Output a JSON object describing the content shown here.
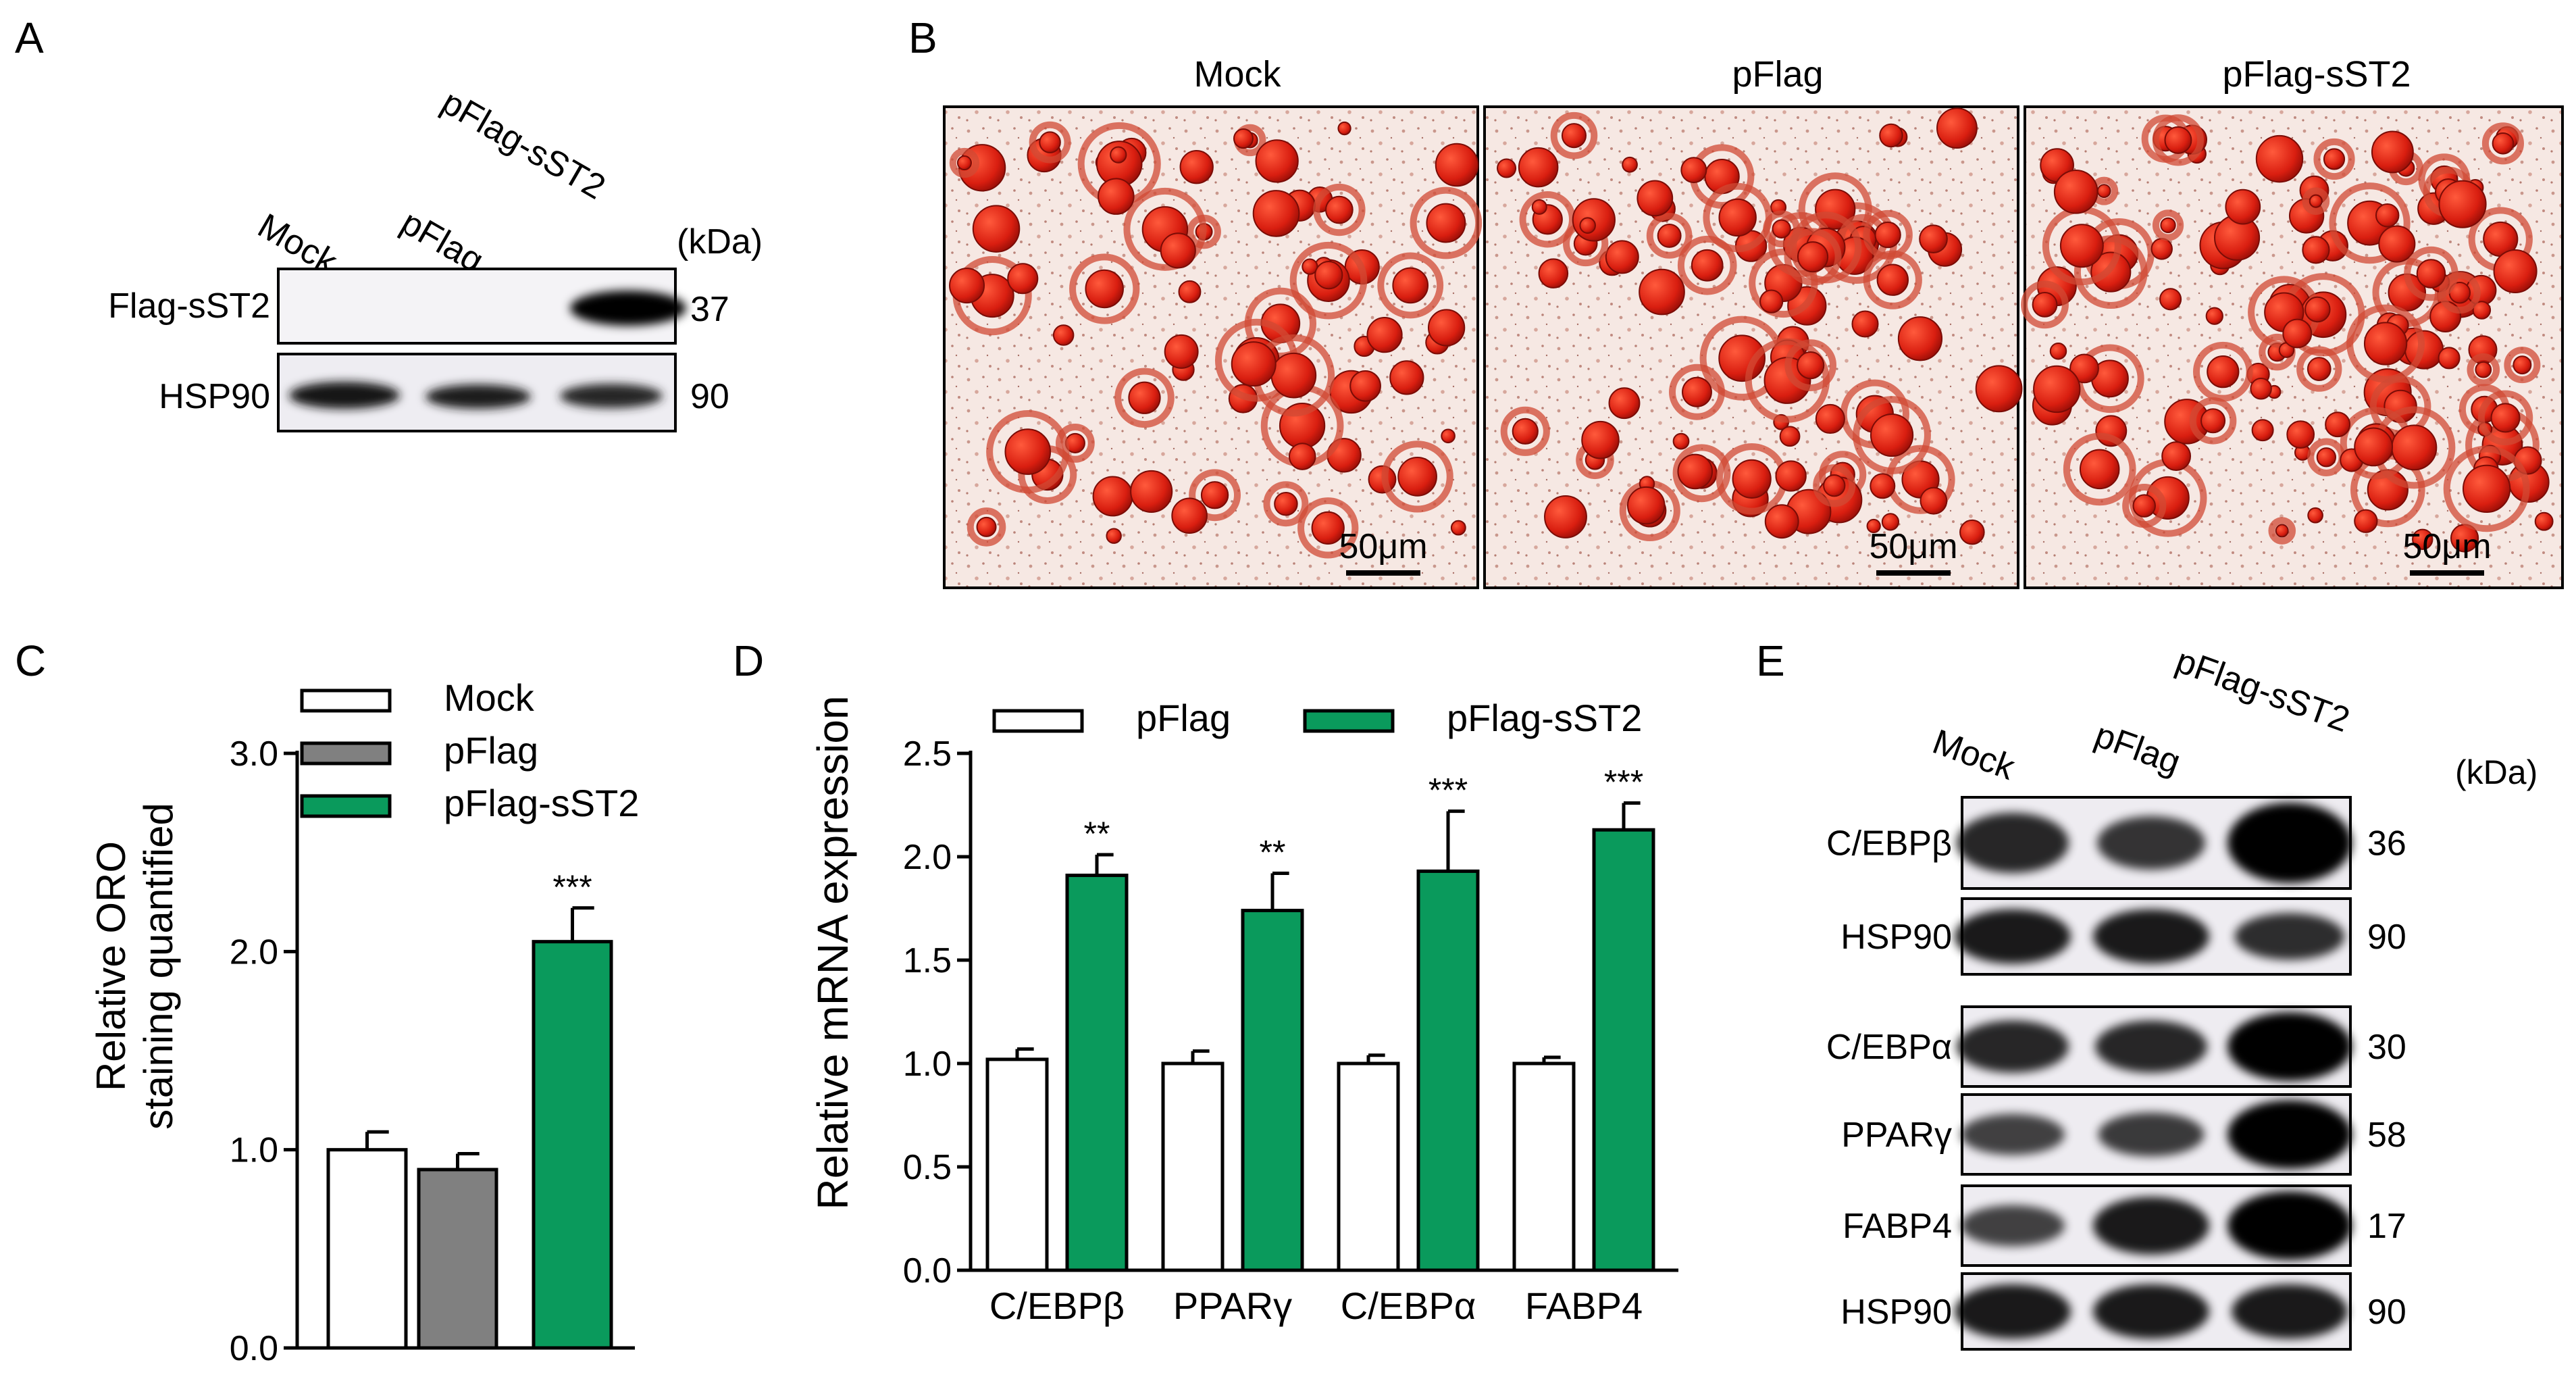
{
  "figure": {
    "panels": {
      "A": {
        "letter": "A",
        "lanes": [
          "Mock",
          "pFlag",
          "pFlag-sST2"
        ],
        "kda_header": "(kDa)",
        "blots": [
          {
            "label": "Flag-sST2",
            "kda": "37",
            "intensities": [
              0,
              0,
              1
            ]
          },
          {
            "label": "HSP90",
            "kda": "90",
            "intensities": [
              1,
              0.9,
              0.85
            ]
          }
        ]
      },
      "B": {
        "letter": "B",
        "images": [
          {
            "title": "Mock",
            "scale_bar": "50μm"
          },
          {
            "title": "pFlag",
            "scale_bar": "50μm"
          },
          {
            "title": "pFlag-sST2",
            "scale_bar": "50μm"
          }
        ]
      },
      "C": {
        "letter": "C"
      },
      "D": {
        "letter": "D"
      },
      "E": {
        "letter": "E",
        "lanes": [
          "Mock",
          "pFlag",
          "pFlag-sST2"
        ],
        "kda_header": "(kDa)",
        "blots": [
          {
            "label": "C/EBPβ",
            "kda": "36",
            "intensities": [
              0.7,
              0.6,
              1
            ]
          },
          {
            "label": "HSP90",
            "kda": "90",
            "intensities": [
              0.8,
              0.8,
              0.65
            ]
          },
          {
            "label": "C/EBPα",
            "kda": "30",
            "intensities": [
              0.7,
              0.7,
              1
            ]
          },
          {
            "label": "PPARγ",
            "kda": "58",
            "intensities": [
              0.5,
              0.55,
              1
            ]
          },
          {
            "label": "FABP4",
            "kda": "17",
            "intensities": [
              0.5,
              0.8,
              1
            ]
          },
          {
            "label": "HSP90",
            "kda": "90",
            "intensities": [
              0.8,
              0.8,
              0.8
            ]
          }
        ]
      }
    }
  },
  "chart_data": [
    {
      "type": "bar",
      "panel": "C",
      "categories": [
        "Mock",
        "pFlag",
        "pFlag-sST2"
      ],
      "series": [
        {
          "name": "Mock",
          "color": "#ffffff",
          "values": [
            1.0,
            null,
            null
          ],
          "errors": [
            0.09,
            null,
            null
          ]
        },
        {
          "name": "pFlag",
          "color": "#808080",
          "values": [
            null,
            0.9,
            null
          ],
          "errors": [
            null,
            0.08,
            null
          ]
        },
        {
          "name": "pFlag-sST2",
          "color": "#0a9a5c",
          "values": [
            null,
            null,
            2.05
          ],
          "errors": [
            null,
            null,
            0.17
          ]
        }
      ],
      "annotations": [
        {
          "category": "pFlag-sST2",
          "text": "***"
        }
      ],
      "ylabel": [
        "Relative ORO",
        "staining quantified"
      ],
      "ylim": [
        0,
        3.0
      ],
      "yticks": [
        "0.0",
        "1.0",
        "2.0",
        "3.0"
      ],
      "grid": false,
      "legend": "top-left"
    },
    {
      "type": "bar",
      "panel": "D",
      "categories": [
        "C/EBPβ",
        "PPARγ",
        "C/EBPα",
        "FABP4"
      ],
      "series": [
        {
          "name": "pFlag",
          "color": "#ffffff",
          "values": [
            1.02,
            1.0,
            1.0,
            1.0
          ],
          "errors": [
            0.05,
            0.06,
            0.04,
            0.03
          ]
        },
        {
          "name": "pFlag-sST2",
          "color": "#0a9a5c",
          "values": [
            1.91,
            1.74,
            1.93,
            2.13
          ],
          "errors": [
            0.1,
            0.18,
            0.29,
            0.13
          ]
        }
      ],
      "annotations": [
        {
          "category": "C/EBPβ",
          "text": "**"
        },
        {
          "category": "PPARγ",
          "text": "**"
        },
        {
          "category": "C/EBPα",
          "text": "***"
        },
        {
          "category": "FABP4",
          "text": "***"
        }
      ],
      "ylabel": "Relative mRNA expression",
      "ylim": [
        0,
        2.5
      ],
      "yticks": [
        "0.0",
        "0.5",
        "1.0",
        "1.5",
        "2.0",
        "2.5"
      ],
      "grid": false,
      "legend": "top"
    }
  ]
}
